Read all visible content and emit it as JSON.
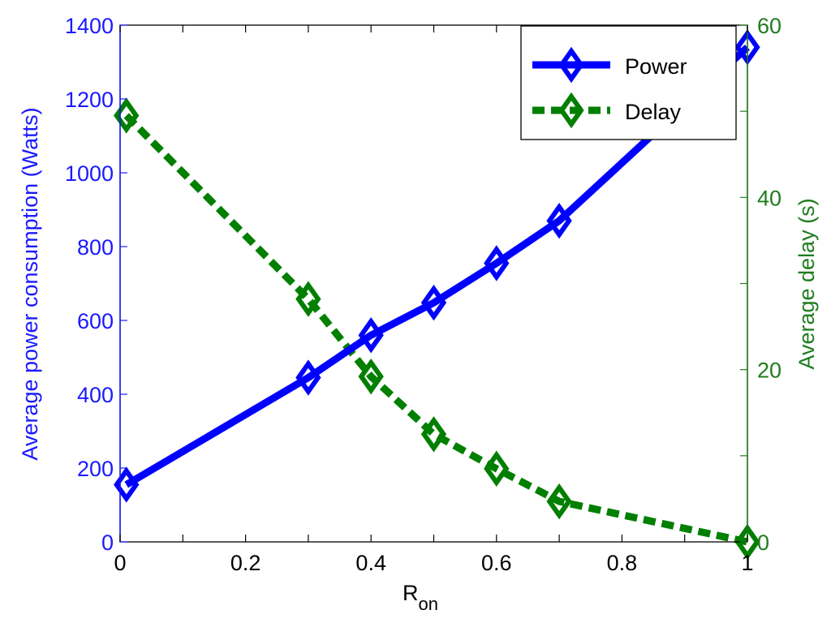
{
  "chart_data": {
    "type": "line",
    "xlabel": "R",
    "xlabel_subscript": "on",
    "ylabel_left": "Average power consumption (Watts)",
    "ylabel_right": "Average delay (s)",
    "xlim": [
      0,
      1
    ],
    "ylim_left": [
      0,
      1400
    ],
    "ylim_right": [
      0,
      60
    ],
    "x_ticks": [
      0,
      0.2,
      0.4,
      0.6,
      0.8,
      1
    ],
    "x_tick_labels": [
      "0",
      "0.2",
      "0.4",
      "0.6",
      "0.8",
      "1"
    ],
    "left_ticks": [
      0,
      200,
      400,
      600,
      800,
      1000,
      1200,
      1400
    ],
    "left_tick_labels": [
      "0",
      "200",
      "400",
      "600",
      "800",
      "1000",
      "1200",
      "1400"
    ],
    "right_ticks": [
      0,
      20,
      40,
      60
    ],
    "right_tick_labels": [
      "0",
      "20",
      "40",
      "60"
    ],
    "grid": false,
    "legend_position": "top-right",
    "colors": {
      "left_axis": "#1a1aff",
      "right_axis": "#1e7d1e",
      "power": "#0000ff",
      "delay": "#007f00"
    },
    "series": [
      {
        "name": "Power",
        "axis": "left",
        "style": "solid",
        "marker": "diamond",
        "x": [
          0.01,
          0.3,
          0.4,
          0.5,
          0.6,
          0.7,
          1.0
        ],
        "y": [
          155,
          445,
          560,
          648,
          755,
          870,
          1340
        ]
      },
      {
        "name": "Delay",
        "axis": "right",
        "style": "dashed",
        "marker": "diamond",
        "x": [
          0.01,
          0.3,
          0.4,
          0.5,
          0.6,
          0.7,
          1.0
        ],
        "y": [
          49.5,
          28.2,
          19.2,
          12.5,
          8.5,
          4.7,
          0.0
        ]
      }
    ]
  }
}
